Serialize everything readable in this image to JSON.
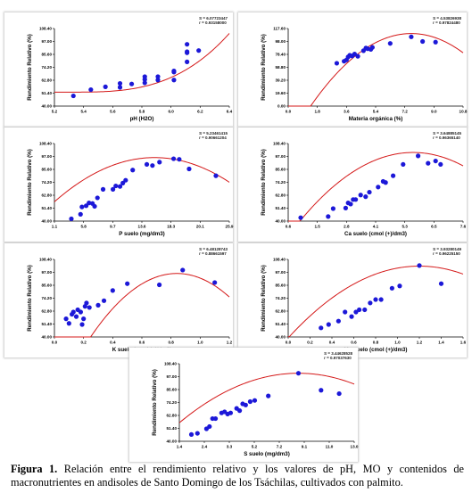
{
  "caption": {
    "label": "Figura 1.",
    "text": "Relación entre el rendimiento relativo y los valores de pH, MO y contenidos de macronutrientes en andisoles de Santo Domingo de los Tsáchilas, cultivados con palmito."
  },
  "chart_data": [
    {
      "type": "scatter",
      "xlabel": "pH (H2O)",
      "ylabel": "Rendimiento Relativo (%)",
      "xticks": [
        "5.2",
        "5.4",
        "5.6",
        "5.8",
        "6.0",
        "6.2",
        "6.4"
      ],
      "xlim": [
        5.2,
        6.4
      ],
      "yticks": [
        "40.00",
        "51.40",
        "62.80",
        "74.20",
        "85.60",
        "97.00",
        "108.40"
      ],
      "ylim": [
        40,
        108.4
      ],
      "stats": [
        "S = 6.07723447",
        "r = 0.93158000"
      ],
      "colors": {
        "point": "#1c18d8",
        "curve": "#d41818"
      },
      "fit": {
        "kind": "poly",
        "coef": [
          52.32,
          0,
          0,
          41.1
        ],
        "origin": 5.32
      },
      "points": [
        [
          5.33,
          49.0
        ],
        [
          5.45,
          54.5
        ],
        [
          5.55,
          57.0
        ],
        [
          5.65,
          56.5
        ],
        [
          5.65,
          60.0
        ],
        [
          5.73,
          59.5
        ],
        [
          5.82,
          60.5
        ],
        [
          5.82,
          63.5
        ],
        [
          5.82,
          66.0
        ],
        [
          5.91,
          63.0
        ],
        [
          5.91,
          66.0
        ],
        [
          6.02,
          70.0
        ],
        [
          6.02,
          71.0
        ],
        [
          6.02,
          63.0
        ],
        [
          6.11,
          79.0
        ],
        [
          6.11,
          87.0
        ],
        [
          6.11,
          88.0
        ],
        [
          6.11,
          94.5
        ],
        [
          6.19,
          89.0
        ]
      ]
    },
    {
      "type": "scatter",
      "xlabel": "Materia orgánica (%)",
      "ylabel": "Rendimiento Relativo (%)",
      "xticks": [
        "0.0",
        "1.8",
        "3.6",
        "5.4",
        "7.2",
        "9.0",
        "10.8"
      ],
      "xlim": [
        0,
        10.8
      ],
      "yticks": [
        "0.00",
        "19.60",
        "39.20",
        "58.80",
        "78.40",
        "98.00",
        "117.60"
      ],
      "ylim": [
        0,
        117.6
      ],
      "stats": [
        "S = 4.53826938",
        "r = 0.97824480"
      ],
      "colors": {
        "point": "#1c18d8",
        "curve": "#d41818"
      },
      "fit": {
        "kind": "poly",
        "coef": [
          110.0,
          0,
          -2.85
        ],
        "origin": 7.6
      },
      "points": [
        [
          3.0,
          65.0
        ],
        [
          3.45,
          68.0
        ],
        [
          3.6,
          70.0
        ],
        [
          3.7,
          74.5
        ],
        [
          3.8,
          77.0
        ],
        [
          3.95,
          76.0
        ],
        [
          4.1,
          79.0
        ],
        [
          4.3,
          75.5
        ],
        [
          4.65,
          84.0
        ],
        [
          4.8,
          88.0
        ],
        [
          4.9,
          87.0
        ],
        [
          5.1,
          86.0
        ],
        [
          5.2,
          89.0
        ],
        [
          6.3,
          95.0
        ],
        [
          7.6,
          105.0
        ],
        [
          8.3,
          98.0
        ],
        [
          9.1,
          97.0
        ]
      ]
    },
    {
      "type": "scatter",
      "xlabel": "P suelo (mg/dm3)",
      "ylabel": "Rendimiento Relativo (%)",
      "xticks": [
        "1.1",
        "5.8",
        "9.7",
        "13.6",
        "18.3",
        "20.1",
        "25.9"
      ],
      "xlim": [
        1.1,
        25.9
      ],
      "yticks": [
        "40.00",
        "51.40",
        "62.80",
        "74.20",
        "85.60",
        "97.00",
        "108.40"
      ],
      "ylim": [
        40,
        108.4
      ],
      "stats": [
        "S = 5.23461415",
        "r = 0.90661204"
      ],
      "colors": {
        "point": "#1c18d8",
        "curve": "#d41818"
      },
      "fit": {
        "kind": "poly",
        "coef": [
          96.0,
          0,
          -0.1934
        ],
        "origin": 15.3
      },
      "points": [
        [
          3.5,
          42.0
        ],
        [
          4.8,
          46.0
        ],
        [
          5.0,
          52.5
        ],
        [
          5.6,
          53.5
        ],
        [
          6.0,
          56.0
        ],
        [
          6.5,
          55.5
        ],
        [
          6.8,
          53.0
        ],
        [
          7.2,
          60.5
        ],
        [
          8.0,
          68.0
        ],
        [
          9.4,
          68.0
        ],
        [
          9.8,
          71.0
        ],
        [
          10.4,
          70.5
        ],
        [
          10.8,
          73.5
        ],
        [
          11.2,
          76.0
        ],
        [
          12.2,
          85.0
        ],
        [
          14.2,
          90.0
        ],
        [
          15.0,
          89.0
        ],
        [
          16.0,
          92.0
        ],
        [
          18.0,
          95.0
        ],
        [
          18.8,
          94.5
        ],
        [
          20.2,
          86.0
        ],
        [
          24.0,
          80.0
        ]
      ]
    },
    {
      "type": "scatter",
      "xlabel": "Ca suelo (cmol (+)/dm3)",
      "ylabel": "Rendimiento Relativo (%)",
      "xticks": [
        "0.6",
        "1.5",
        "2.8",
        "4.1",
        "5.3",
        "6.5",
        "7.6"
      ],
      "xlim": [
        0.6,
        7.6
      ],
      "yticks": [
        "40.00",
        "51.40",
        "62.80",
        "74.20",
        "85.60",
        "97.00",
        "108.40"
      ],
      "ylim": [
        40,
        108.4
      ],
      "stats": [
        "S = 3.64885145",
        "r = 0.96365140"
      ],
      "colors": {
        "point": "#1c18d8",
        "curve": "#d41818"
      },
      "fit": {
        "kind": "poly",
        "coef": [
          100.5,
          0,
          -2.95
        ],
        "origin": 5.6
      },
      "points": [
        [
          1.1,
          43.0
        ],
        [
          2.2,
          44.0
        ],
        [
          2.4,
          51.0
        ],
        [
          2.9,
          51.5
        ],
        [
          3.0,
          56.0
        ],
        [
          3.1,
          55.0
        ],
        [
          3.2,
          59.0
        ],
        [
          3.3,
          59.0
        ],
        [
          3.5,
          63.0
        ],
        [
          3.7,
          61.5
        ],
        [
          3.85,
          65.5
        ],
        [
          4.2,
          70.0
        ],
        [
          4.4,
          75.0
        ],
        [
          4.5,
          74.0
        ],
        [
          4.8,
          80.0
        ],
        [
          5.2,
          90.0
        ],
        [
          5.8,
          97.5
        ],
        [
          6.2,
          91.0
        ],
        [
          6.5,
          93.0
        ],
        [
          6.7,
          90.0
        ]
      ]
    },
    {
      "type": "scatter",
      "xlabel": "K suelo (cmol (+)/dm3)",
      "ylabel": "Rendimiento Relativo (%)",
      "xticks": [
        "0.0",
        "0.2",
        "0.4",
        "0.6",
        "0.8",
        "1.0",
        "1.2"
      ],
      "xlim": [
        0,
        1.2
      ],
      "yticks": [
        "40.00",
        "51.40",
        "62.80",
        "74.20",
        "85.60",
        "97.00",
        "108.40"
      ],
      "ylim": [
        40,
        108.4
      ],
      "stats": [
        "S = 6.48128743",
        "r = 0.88661597"
      ],
      "colors": {
        "point": "#1c18d8",
        "curve": "#d41818"
      },
      "fit": {
        "kind": "poly",
        "coef": [
          96.0,
          0,
          -160.0
        ],
        "origin": 0.84
      },
      "points": [
        [
          0.08,
          56.0
        ],
        [
          0.1,
          52.0
        ],
        [
          0.12,
          60.0
        ],
        [
          0.13,
          62.0
        ],
        [
          0.15,
          58.0
        ],
        [
          0.16,
          64.0
        ],
        [
          0.18,
          62.0
        ],
        [
          0.19,
          51.0
        ],
        [
          0.2,
          56.0
        ],
        [
          0.21,
          67.0
        ],
        [
          0.22,
          70.0
        ],
        [
          0.24,
          66.0
        ],
        [
          0.3,
          68.0
        ],
        [
          0.34,
          72.0
        ],
        [
          0.4,
          81.0
        ],
        [
          0.5,
          87.0
        ],
        [
          0.72,
          86.0
        ],
        [
          0.88,
          99.0
        ],
        [
          1.1,
          88.0
        ]
      ]
    },
    {
      "type": "scatter",
      "xlabel": "Mg suelo (cmol (+)/dm3)",
      "ylabel": "Rendimiento Relativo (%)",
      "xticks": [
        "0.0",
        "0.2",
        "0.4",
        "0.6",
        "0.8",
        "1.0",
        "1.2",
        "1.4",
        "1.6"
      ],
      "xlim": [
        0,
        1.6
      ],
      "yticks": [
        "40.00",
        "51.40",
        "62.80",
        "74.20",
        "85.60",
        "97.00",
        "108.40"
      ],
      "ylim": [
        40,
        108.4
      ],
      "stats": [
        "S = 3.93280149",
        "r = 0.96225150"
      ],
      "colors": {
        "point": "#1c18d8",
        "curve": "#d41818"
      },
      "fit": {
        "kind": "poly",
        "coef": [
          102.5,
          0,
          -44.0
        ],
        "origin": 1.2
      },
      "points": [
        [
          0.3,
          48.0
        ],
        [
          0.37,
          51.0
        ],
        [
          0.46,
          54.0
        ],
        [
          0.52,
          62.0
        ],
        [
          0.58,
          58.0
        ],
        [
          0.62,
          62.0
        ],
        [
          0.65,
          64.0
        ],
        [
          0.7,
          64.0
        ],
        [
          0.75,
          70.0
        ],
        [
          0.8,
          73.0
        ],
        [
          0.85,
          73.0
        ],
        [
          0.95,
          83.0
        ],
        [
          1.02,
          85.0
        ],
        [
          1.2,
          103.0
        ],
        [
          1.4,
          87.0
        ]
      ]
    },
    {
      "type": "scatter",
      "xlabel": "S suelo (mg/dm3)",
      "ylabel": "Rendimiento Relativo (%)",
      "xticks": [
        "1.4",
        "2.4",
        "3.3",
        "5.2",
        "7.2",
        "9.1",
        "11.0",
        "13.0"
      ],
      "xlim": [
        1.4,
        13.0
      ],
      "yticks": [
        "40.00",
        "51.40",
        "62.80",
        "74.20",
        "85.60",
        "97.00",
        "108.40"
      ],
      "ylim": [
        40,
        108.4
      ],
      "stats": [
        "S = 3.44628528",
        "r = 0.97037630"
      ],
      "colors": {
        "point": "#1c18d8",
        "curve": "#d41818"
      },
      "fit": {
        "kind": "poly",
        "coef": [
          100.0,
          0,
          -0.7
        ],
        "origin": 9.3
      },
      "points": [
        [
          2.2,
          46.0
        ],
        [
          2.6,
          47.0
        ],
        [
          3.2,
          51.0
        ],
        [
          3.4,
          53.0
        ],
        [
          3.6,
          60.0
        ],
        [
          3.8,
          60.0
        ],
        [
          4.2,
          65.0
        ],
        [
          4.4,
          66.0
        ],
        [
          4.6,
          64.0
        ],
        [
          4.8,
          65.0
        ],
        [
          5.2,
          69.0
        ],
        [
          5.4,
          67.0
        ],
        [
          5.6,
          73.0
        ],
        [
          5.8,
          72.0
        ],
        [
          6.1,
          75.0
        ],
        [
          6.4,
          76.0
        ],
        [
          7.3,
          80.0
        ],
        [
          9.3,
          100.0
        ],
        [
          10.8,
          85.0
        ],
        [
          12.0,
          82.0
        ]
      ]
    }
  ]
}
